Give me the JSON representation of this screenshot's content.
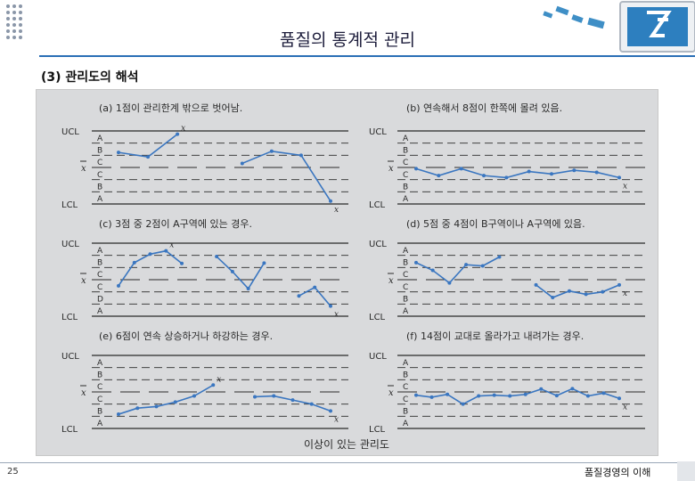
{
  "slide": {
    "title": "품질의 통계적 관리",
    "subtitle": "(3) 관리도의 해석",
    "page_number": "25",
    "footer": "품질경영의 이해"
  },
  "figure": {
    "caption": "이상이 있는 관리도",
    "limit_labels": {
      "ucl": "UCL",
      "center": "x",
      "lcl": "LCL"
    },
    "zones": [
      "A",
      "B",
      "C",
      "C",
      "B",
      "A"
    ],
    "zones_c": [
      "A",
      "B",
      "C",
      "C",
      "D",
      "A"
    ],
    "panels": [
      {
        "label": "(a) 1점이 관리한계 밖으로 벗어남.",
        "zones_key": "zones",
        "series": [
          {
            "values": [
              3.7,
              2.6,
              8.2
            ]
          },
          {
            "values": [
              1.0,
              4.0,
              3.0,
              -8.3
            ]
          }
        ],
        "marks": [
          {
            "series": 0,
            "point": 2
          },
          {
            "series": 1,
            "point": 3
          }
        ]
      },
      {
        "label": "(b) 연속해서 8점이 한쪽에 몰려 있음.",
        "zones_key": "zones",
        "series": [
          {
            "values": [
              -0.3,
              -2.0,
              -0.3,
              -2.0,
              -2.5,
              -1.0,
              -1.6,
              -0.7,
              -1.2,
              -2.5
            ]
          }
        ],
        "marks": [
          {
            "series": 0,
            "point": 9
          }
        ]
      },
      {
        "label": "(c) 3점 중 2점이 A구역에 있는 경우.",
        "zones_key": "zones_c",
        "series": [
          {
            "values": [
              -1.5,
              4.2,
              6.3,
              7.1,
              4.0
            ]
          },
          {
            "values": [
              5.7,
              2.0,
              -2.2,
              4.1
            ]
          },
          {
            "values": [
              -4.0,
              -1.9,
              -6.5
            ]
          }
        ],
        "marks": [
          {
            "series": 0,
            "point": 3
          },
          {
            "series": 2,
            "point": 2
          }
        ]
      },
      {
        "label": "(d) 5점 중 4점이 B구역이나 A구역에 있음.",
        "zones_key": "zones",
        "series": [
          {
            "values": [
              4.2,
              2.3,
              -0.8,
              3.7,
              3.4,
              5.6
            ]
          },
          {
            "values": [
              -1.3,
              -4.4,
              -2.8,
              -3.6,
              -3.0,
              -1.3
            ]
          }
        ],
        "marks": [
          {
            "series": 1,
            "point": 5
          }
        ]
      },
      {
        "label": "(e) 6점이 연속 상승하거나 하강하는 경우.",
        "zones_key": "zones",
        "series": [
          {
            "values": [
              -5.5,
              -4.0,
              -3.6,
              -2.5,
              -1.0,
              1.7
            ]
          },
          {
            "values": [
              -1.2,
              -1.0,
              -2.0,
              -3.0,
              -4.7
            ]
          }
        ],
        "marks": [
          {
            "series": 0,
            "point": 5
          },
          {
            "series": 1,
            "point": 4
          }
        ]
      },
      {
        "label": "(f) 14점이 교대로 올라가고 내려가는 경우.",
        "zones_key": "zones",
        "series": [
          {
            "values": [
              -0.8,
              -1.3,
              -0.6,
              -3.0,
              -1.0,
              -0.8,
              -1.0,
              -0.6,
              0.7,
              -0.9,
              0.8,
              -1.0,
              -0.3,
              -1.6
            ]
          }
        ],
        "marks": [
          {
            "series": 0,
            "point": 13
          }
        ]
      }
    ]
  }
}
